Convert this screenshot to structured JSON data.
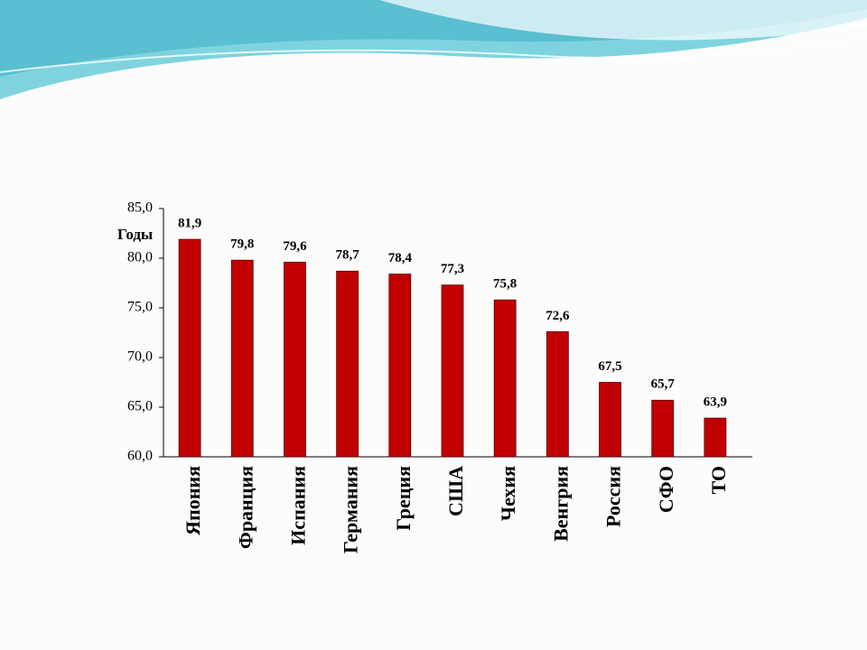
{
  "chart_data": {
    "type": "bar",
    "y_label": "Годы",
    "categories": [
      "Япония",
      "Франция",
      "Испания",
      "Германия",
      "Греция",
      "США",
      "Чехия",
      "Венгрия",
      "Россия",
      "СФО",
      "ТО"
    ],
    "values": [
      81.9,
      79.8,
      79.6,
      78.7,
      78.4,
      77.3,
      75.8,
      72.6,
      67.5,
      65.7,
      63.9
    ],
    "value_labels": [
      "81,9",
      "79,8",
      "79,6",
      "78,7",
      "78,4",
      "77,3",
      "75,8",
      "72,6",
      "67,5",
      "65,7",
      "63,9"
    ],
    "color": "#c00000",
    "ylim": [
      60,
      85
    ],
    "yticks": [
      {
        "value": 60,
        "label": "60,0"
      },
      {
        "value": 65,
        "label": "65,0"
      },
      {
        "value": 70,
        "label": "70,0"
      },
      {
        "value": 75,
        "label": "75,0"
      },
      {
        "value": 80,
        "label": "80,0"
      },
      {
        "value": 85,
        "label": "85,0"
      }
    ],
    "grid": false
  }
}
